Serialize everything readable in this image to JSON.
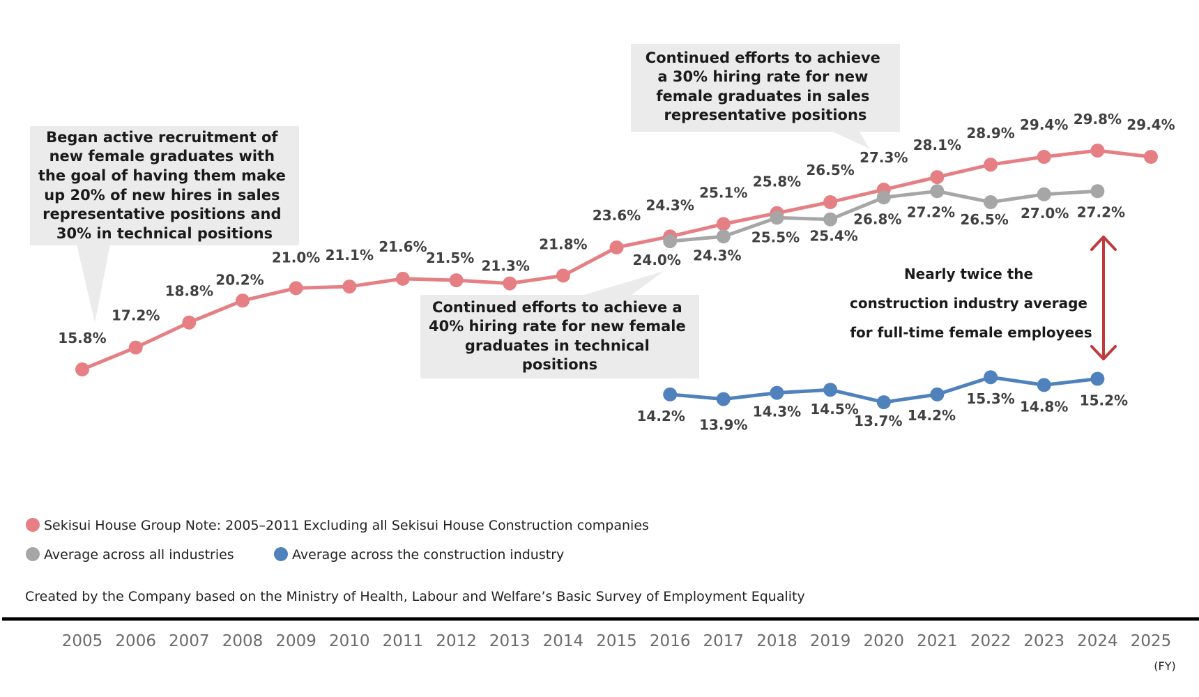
{
  "chart_data": {
    "type": "line",
    "title": "",
    "xlabel": "(FY)",
    "ylabel": "",
    "x": [
      "2005",
      "2006",
      "2007",
      "2008",
      "2009",
      "2010",
      "2011",
      "2012",
      "2013",
      "2014",
      "2015",
      "2016",
      "2017",
      "2018",
      "2019",
      "2020",
      "2021",
      "2022",
      "2023",
      "2024",
      "2025"
    ],
    "series": [
      {
        "name": "Sekisui House Group Note: 2005–2011 Excluding all Sekisui House Construction companies",
        "color": "#e57f84",
        "values": [
          15.8,
          17.2,
          18.8,
          20.2,
          21.0,
          21.1,
          21.6,
          21.5,
          21.3,
          21.8,
          23.6,
          24.3,
          25.1,
          25.8,
          26.5,
          27.3,
          28.1,
          28.9,
          29.4,
          29.8,
          29.4
        ],
        "labels": [
          "15.8%",
          "17.2%",
          "18.8%",
          "20.2%",
          "21.0%",
          "21.1%",
          "21.6%",
          "21.5%",
          "21.3%",
          "21.8%",
          "23.6%",
          "24.3%",
          "25.1%",
          "25.8%",
          "26.5%",
          "27.3%",
          "28.1%",
          "28.9%",
          "29.4%",
          "29.8%",
          "29.4%"
        ]
      },
      {
        "name": "Average across all industries",
        "color": "#a6a6a6",
        "values": [
          null,
          null,
          null,
          null,
          null,
          null,
          null,
          null,
          null,
          null,
          null,
          24.0,
          24.3,
          25.5,
          25.4,
          26.8,
          27.2,
          26.5,
          27.0,
          27.2,
          null
        ],
        "labels": [
          null,
          null,
          null,
          null,
          null,
          null,
          null,
          null,
          null,
          null,
          null,
          "24.0%",
          "24.3%",
          "25.5%",
          "25.4%",
          "26.8%",
          "27.2%",
          "26.5%",
          "27.0%",
          "27.2%",
          null
        ]
      },
      {
        "name": "Average across the construction industry",
        "color": "#4f81bd",
        "values": [
          null,
          null,
          null,
          null,
          null,
          null,
          null,
          null,
          null,
          null,
          null,
          14.2,
          13.9,
          14.3,
          14.5,
          13.7,
          14.2,
          15.3,
          14.8,
          15.2,
          null
        ],
        "labels": [
          null,
          null,
          null,
          null,
          null,
          null,
          null,
          null,
          null,
          null,
          null,
          "14.2%",
          "13.9%",
          "14.3%",
          "14.5%",
          "13.7%",
          "14.2%",
          "15.3%",
          "14.8%",
          "15.2%",
          null
        ]
      }
    ],
    "annotations": [
      {
        "id": "recruitment-start",
        "lines": [
          "Began active recruitment of",
          "new female graduates with",
          "the goal of having them make",
          "up 20% of new hires in sales",
          "representative positions and",
          "30% in technical positions"
        ],
        "points_to": "2005"
      },
      {
        "id": "technical-40",
        "lines": [
          "Continued efforts to achieve a",
          "40% hiring rate for new female",
          "graduates in technical",
          "positions"
        ],
        "points_to": "2016"
      },
      {
        "id": "sales-30",
        "lines": [
          "Continued efforts to achieve",
          "a 30% hiring rate for new",
          "female graduates in sales",
          "representative positions"
        ],
        "points_to": "2020"
      },
      {
        "id": "nearly-twice",
        "lines": [
          "Nearly twice the",
          "construction industry average",
          "for full-time female employees"
        ],
        "arrow_color": "#c0393b",
        "spans": [
          "2024 all-industries/Sekisui House",
          "2024 construction"
        ]
      }
    ],
    "source_note": "Created by the Company based on the Ministry of Health, Labour and Welfare’s Basic Survey of Employment Equality",
    "ylim": [
      13,
      30.5
    ],
    "grid": false,
    "legend_position": "bottom-left"
  }
}
